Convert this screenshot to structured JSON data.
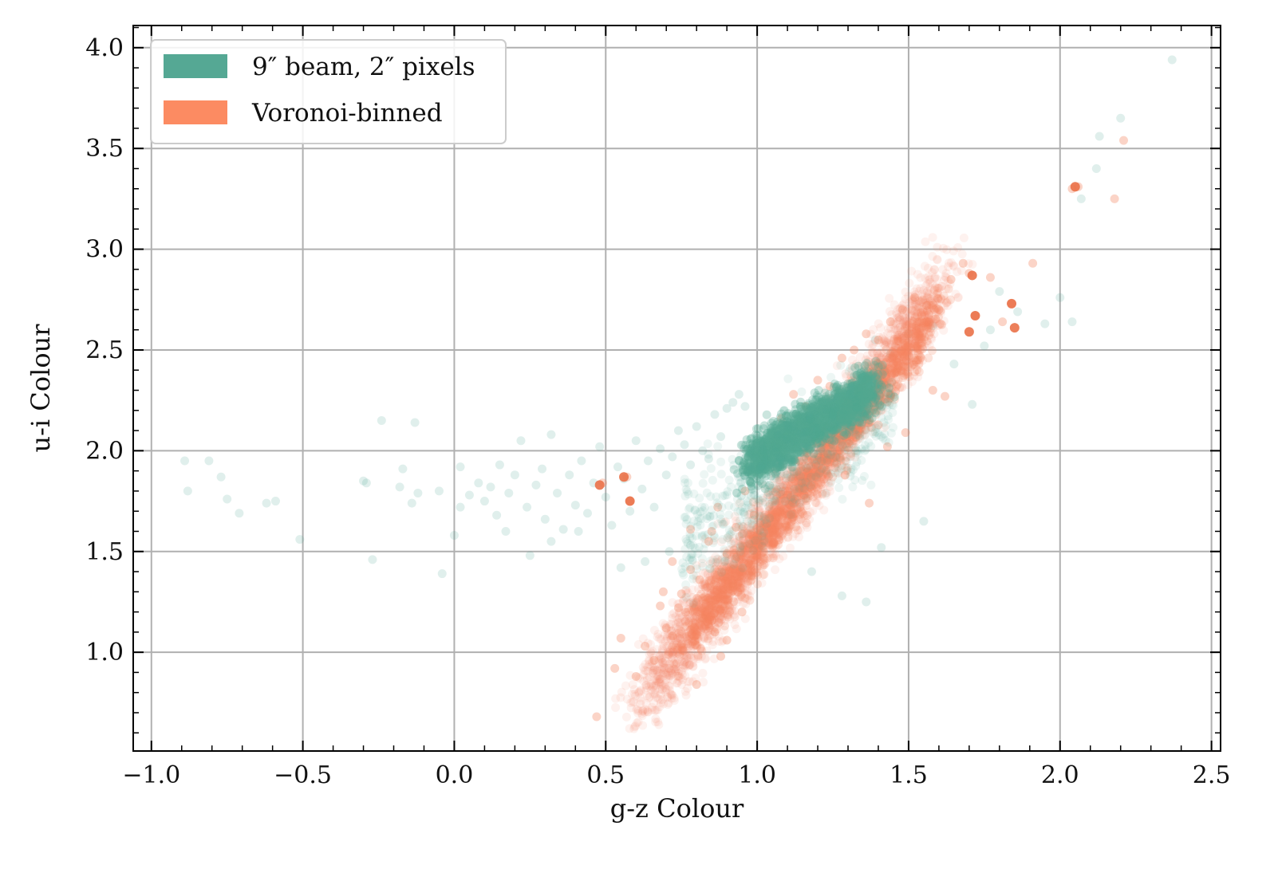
{
  "chart_data": {
    "type": "scatter",
    "title": "",
    "xlabel": "g-z Colour",
    "ylabel": "u-i Colour",
    "xlim": [
      -1.06,
      2.53
    ],
    "ylim": [
      0.51,
      4.11
    ],
    "xticks": [
      -1.0,
      -0.5,
      0.0,
      0.5,
      1.0,
      1.5,
      2.0,
      2.5
    ],
    "xtick_labels": [
      "−1.0",
      "−0.5",
      "0.0",
      "0.5",
      "1.0",
      "1.5",
      "2.0",
      "2.5"
    ],
    "yticks": [
      1.0,
      1.5,
      2.0,
      2.5,
      3.0,
      3.5,
      4.0
    ],
    "ytick_labels": [
      "1.0",
      "1.5",
      "2.0",
      "2.5",
      "3.0",
      "3.5",
      "4.0"
    ],
    "grid": true,
    "legend_position": "top-left",
    "series": [
      {
        "name": "9″ beam, 2″ pixels",
        "color": "#52a893",
        "swatch_color": "#55a894",
        "x": [
          -0.89,
          -0.88,
          -0.81,
          -0.77,
          -0.75,
          -0.71,
          -0.62,
          -0.59,
          -0.51,
          -0.3,
          -0.29,
          -0.27,
          -0.24,
          -0.13,
          -0.18,
          -0.17,
          -0.14,
          -0.12,
          -0.05,
          -0.04,
          0.0,
          0.02,
          0.02,
          0.05,
          0.08,
          0.1,
          0.12,
          0.14,
          0.15,
          0.17,
          0.18,
          0.2,
          0.22,
          0.24,
          0.27,
          0.29,
          0.3,
          0.32,
          0.34,
          0.36,
          0.38,
          0.4,
          0.42,
          0.44,
          0.46,
          0.48,
          0.5,
          0.52,
          0.54,
          0.56,
          0.58,
          0.6,
          0.62,
          0.64,
          0.66,
          0.68,
          0.7,
          0.72,
          0.74,
          0.76,
          0.78,
          0.8,
          0.82,
          0.84,
          0.86,
          0.88,
          0.9,
          0.92,
          0.94,
          0.96,
          0.25,
          0.32,
          0.41,
          0.55,
          0.63,
          0.71,
          0.78,
          1.18,
          1.28,
          1.36,
          1.41,
          1.55,
          1.71,
          1.77,
          1.8,
          1.86,
          1.95,
          2.0,
          2.04,
          2.07,
          2.12,
          2.13,
          2.2,
          2.37,
          1.39,
          1.44,
          1.5,
          1.58,
          1.65,
          1.75
        ],
        "y": [
          1.95,
          1.8,
          1.95,
          1.87,
          1.76,
          1.69,
          1.74,
          1.75,
          1.56,
          1.85,
          1.84,
          1.46,
          2.15,
          2.14,
          1.82,
          1.91,
          1.74,
          1.79,
          1.8,
          1.39,
          1.58,
          1.72,
          1.92,
          1.78,
          1.84,
          1.75,
          1.82,
          1.68,
          1.93,
          1.6,
          1.79,
          1.88,
          2.05,
          1.72,
          1.83,
          1.91,
          1.66,
          2.08,
          1.79,
          1.61,
          1.88,
          1.73,
          1.95,
          1.69,
          1.84,
          2.02,
          1.77,
          1.63,
          1.92,
          1.86,
          1.7,
          2.05,
          1.81,
          1.95,
          1.72,
          2.01,
          1.88,
          1.97,
          2.1,
          2.03,
          1.93,
          2.12,
          2.0,
          1.96,
          2.18,
          2.07,
          2.21,
          2.24,
          2.28,
          2.22,
          1.48,
          1.55,
          1.6,
          1.42,
          1.45,
          1.5,
          1.53,
          1.4,
          1.28,
          1.25,
          1.52,
          1.65,
          2.23,
          2.6,
          2.79,
          2.69,
          2.63,
          2.76,
          2.64,
          3.25,
          3.4,
          3.56,
          3.65,
          3.94,
          2.55,
          2.48,
          2.58,
          2.62,
          2.43,
          2.52
        ],
        "dense_core": {
          "x_range": [
            0.95,
            1.4
          ],
          "y_range": [
            1.85,
            2.45
          ]
        }
      },
      {
        "name": "Voronoi-binned",
        "color": "#f4845e",
        "swatch_color": "#fc8b62",
        "x": [
          0.49,
          0.57,
          0.58,
          0.47,
          0.53,
          0.55,
          0.6,
          0.63,
          0.66,
          0.68,
          0.72,
          0.75,
          0.78,
          0.81,
          0.84,
          0.87,
          0.9,
          0.93,
          0.96,
          0.99,
          1.02,
          1.05,
          1.08,
          1.12,
          1.16,
          1.2,
          1.24,
          1.28,
          1.32,
          1.36,
          1.4,
          1.44,
          1.48,
          1.52,
          1.56,
          1.6,
          1.64,
          1.68,
          1.7,
          1.72,
          1.77,
          1.81,
          1.84,
          1.91,
          2.04,
          2.06,
          2.18,
          2.21,
          1.62,
          1.58,
          1.49,
          1.43,
          1.37,
          1.29,
          0.78,
          0.72,
          0.69,
          0.82,
          0.86,
          0.9,
          0.95,
          0.98,
          1.0,
          0.85,
          0.92,
          1.1,
          1.14,
          1.22,
          1.26,
          1.33,
          1.46,
          1.53,
          0.7,
          0.74,
          0.8,
          0.88
        ],
        "y": [
          1.84,
          1.87,
          1.75,
          0.68,
          0.92,
          1.07,
          0.88,
          1.03,
          0.96,
          1.23,
          1.08,
          1.29,
          1.41,
          1.36,
          1.55,
          1.72,
          1.49,
          1.62,
          1.8,
          1.68,
          1.92,
          2.07,
          2.16,
          2.28,
          2.22,
          2.35,
          2.32,
          2.46,
          2.5,
          2.58,
          2.55,
          2.64,
          2.7,
          2.76,
          2.72,
          2.7,
          2.85,
          2.93,
          2.88,
          2.67,
          2.86,
          2.64,
          2.73,
          2.93,
          3.3,
          3.31,
          3.25,
          3.54,
          2.27,
          2.3,
          2.09,
          2.02,
          1.74,
          1.88,
          1.61,
          1.45,
          1.3,
          1.17,
          1.1,
          1.06,
          1.2,
          1.38,
          1.58,
          1.6,
          1.33,
          1.78,
          1.95,
          2.12,
          2.04,
          2.18,
          2.39,
          2.45,
          1.12,
          1.22,
          0.84,
          0.98
        ],
        "highlighted": {
          "x": [
            0.48,
            0.56,
            0.58,
            1.71,
            1.72,
            1.84,
            1.7,
            1.85,
            2.05
          ],
          "y": [
            1.83,
            1.87,
            1.75,
            2.87,
            2.67,
            2.73,
            2.59,
            2.61,
            3.31
          ]
        }
      }
    ]
  }
}
